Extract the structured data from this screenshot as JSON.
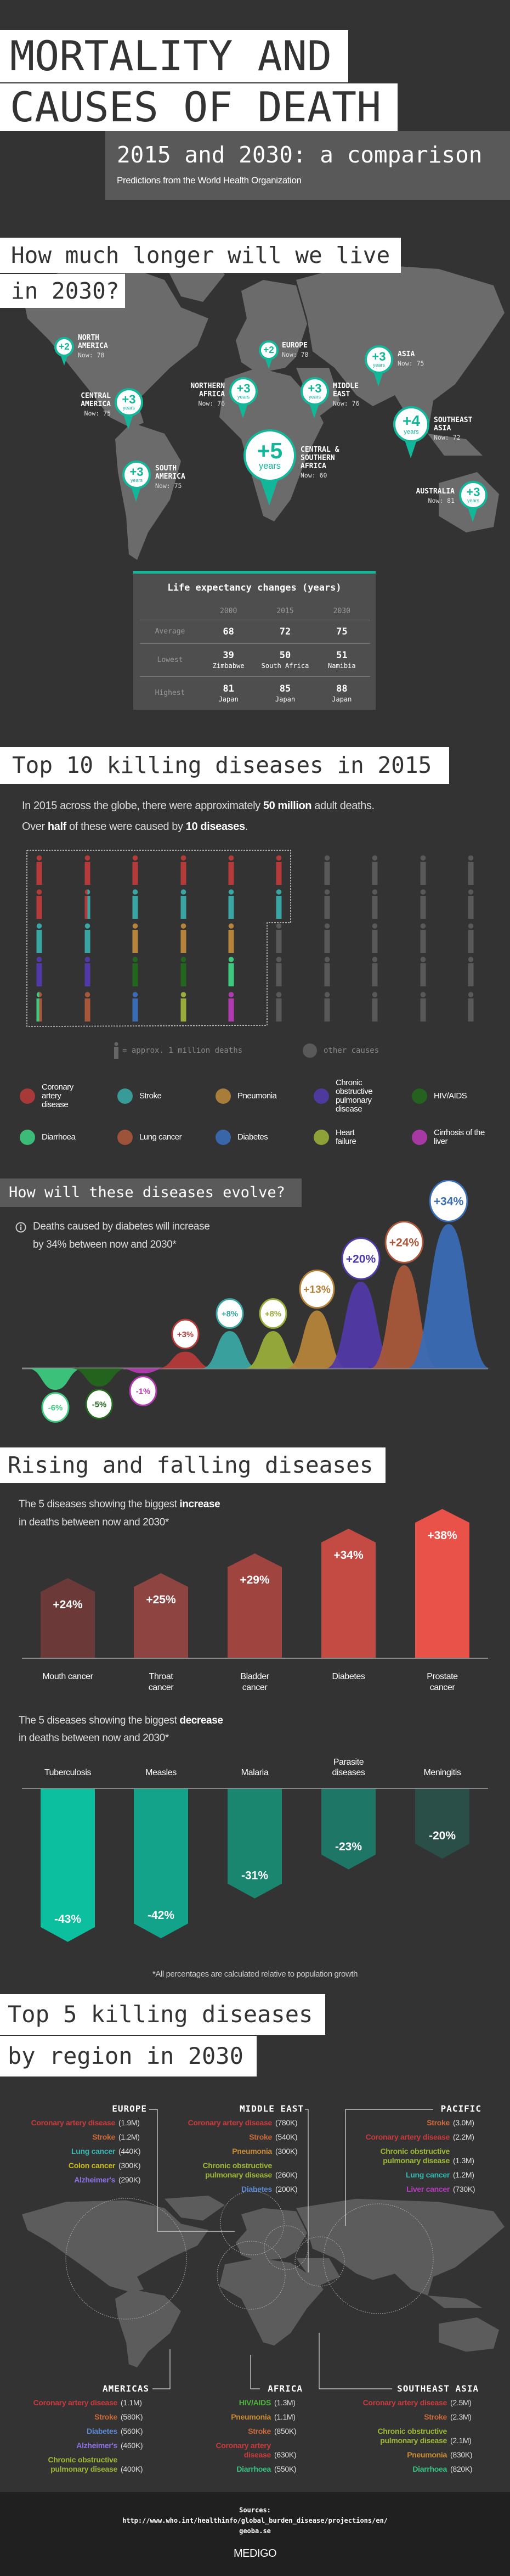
{
  "header": {
    "title_line1": "MORTALITY AND",
    "title_line2": "CAUSES OF DEATH",
    "subtitle": "2015 and 2030: a comparison",
    "tagline": "Predictions from the World Health Organization"
  },
  "colors": {
    "background": "#333333",
    "accent": "#12b79a",
    "land": "#6b6b6b",
    "coronary": "#b53a3a",
    "stroke": "#3aa6a3",
    "pneumonia": "#b5843a",
    "copd": "#513aa8",
    "hiv": "#23661d",
    "diarrhoea": "#3dc97e",
    "lung": "#a8573a",
    "diabetes": "#3a6cb5",
    "heart": "#98ad3a",
    "cirrhosis": "#b23ab0",
    "other": "#595959"
  },
  "life": {
    "heading_line1": "How much longer will we live",
    "heading_line2": "in 2030?",
    "pins": [
      {
        "region_lines": [
          "NORTH",
          "AMERICA"
        ],
        "change": "+2",
        "unit": "",
        "now": "Now: 78"
      },
      {
        "region_lines": [
          "EUROPE"
        ],
        "change": "+2",
        "unit": "",
        "now": "Now: 78"
      },
      {
        "region_lines": [
          "ASIA"
        ],
        "change": "+3",
        "unit": "years",
        "now": "Now: 75"
      },
      {
        "region_lines": [
          "NORTHERN",
          "AFRICA"
        ],
        "change": "+3",
        "unit": "years",
        "now": "Now: 76"
      },
      {
        "region_lines": [
          "MIDDLE",
          "EAST"
        ],
        "change": "+3",
        "unit": "years",
        "now": "Now: 76"
      },
      {
        "region_lines": [
          "CENTRAL",
          "AMERICA"
        ],
        "change": "+3",
        "unit": "years",
        "now": "Now: 75"
      },
      {
        "region_lines": [
          "SOUTHEAST",
          "ASIA"
        ],
        "change": "+4",
        "unit": "years",
        "now": "Now: 72"
      },
      {
        "region_lines": [
          "CENTRAL &",
          "SOUTHERN",
          "AFRICA"
        ],
        "change": "+5",
        "unit": "years",
        "now": "Now: 60"
      },
      {
        "region_lines": [
          "SOUTH",
          "AMERICA"
        ],
        "change": "+3",
        "unit": "years",
        "now": "Now: 75"
      },
      {
        "region_lines": [
          "AUSTRALIA"
        ],
        "change": "+3",
        "unit": "years",
        "now": "Now: 81"
      }
    ],
    "table": {
      "title": "Life expectancy changes (years)",
      "years": [
        "2000",
        "2015",
        "2030"
      ],
      "rows": [
        {
          "label": "Average",
          "cells": [
            {
              "value": "68",
              "country": ""
            },
            {
              "value": "72",
              "country": ""
            },
            {
              "value": "75",
              "country": ""
            }
          ]
        },
        {
          "label": "Lowest",
          "cells": [
            {
              "value": "39",
              "country": "Zimbabwe"
            },
            {
              "value": "50",
              "country": "South Africa"
            },
            {
              "value": "51",
              "country": "Namibia"
            }
          ]
        },
        {
          "label": "Highest",
          "cells": [
            {
              "value": "81",
              "country": "Japan"
            },
            {
              "value": "85",
              "country": "Japan"
            },
            {
              "value": "88",
              "country": "Japan"
            }
          ]
        }
      ]
    }
  },
  "top10": {
    "heading": "Top 10 killing diseases in 2015",
    "intro_line1": {
      "pre": "In 2015 across the globe, there were approximately ",
      "bold": "50 million",
      "post": " adult deaths."
    },
    "intro_line2": {
      "pre": "Over ",
      "bold1": "half",
      "mid": " of these were caused by ",
      "bold2": "10 diseases",
      "post": "."
    },
    "grid": [
      [
        "coronary",
        "coronary",
        "coronary",
        "coronary",
        "coronary",
        "coronary",
        "other",
        "other",
        "other",
        "other"
      ],
      [
        "coronary",
        "coronary|stroke",
        "stroke",
        "stroke",
        "stroke",
        "stroke",
        "other",
        "other",
        "other",
        "other"
      ],
      [
        "stroke",
        "stroke",
        "pneumonia",
        "pneumonia",
        "pneumonia",
        "other",
        "other",
        "other",
        "other",
        "other"
      ],
      [
        "copd",
        "copd",
        "hiv",
        "hiv",
        "diarrhoea",
        "other",
        "other",
        "other",
        "other",
        "other"
      ],
      [
        "diarrhoea|lung",
        "lung",
        "diabetes",
        "heart",
        "cirrhosis",
        "other",
        "other",
        "other",
        "other",
        "other"
      ]
    ],
    "key_figure": "= approx. 1 million deaths",
    "key_other": "other causes",
    "legend": [
      {
        "key": "coronary",
        "label": "Coronary artery disease"
      },
      {
        "key": "stroke",
        "label": "Stroke"
      },
      {
        "key": "pneumonia",
        "label": "Pneumonia"
      },
      {
        "key": "copd",
        "label": "Chronic obstructive pulmonary disease"
      },
      {
        "key": "hiv",
        "label": "HIV/AIDS"
      },
      {
        "key": "diarrhoea",
        "label": "Diarrhoea"
      },
      {
        "key": "lung",
        "label": "Lung cancer"
      },
      {
        "key": "diabetes",
        "label": "Diabetes"
      },
      {
        "key": "heart",
        "label": "Heart failure"
      },
      {
        "key": "cirrhosis",
        "label": "Cirrhosis of the liver"
      }
    ]
  },
  "evolve": {
    "heading": "How will these diseases evolve?",
    "info_icon": "info-icon",
    "note_line1": "Deaths caused by diabetes will increase",
    "note_line2": "by 34% between now and 2030*"
  },
  "rising": {
    "heading": "Rising and falling diseases",
    "inc_line1": {
      "pre": "The 5 diseases showing the biggest ",
      "bold": "increase"
    },
    "inc_line2": "in deaths between now and 2030*",
    "dec_line1": {
      "pre": "The 5 diseases showing the biggest ",
      "bold": "decrease"
    },
    "dec_line2": "in deaths between now and 2030*",
    "footnote": "*All percentages are calculated relative to population growth"
  },
  "chart_data": [
    {
      "type": "area",
      "title": "How will these diseases evolve?",
      "categories": [
        "Diarrhoea",
        "HIV/AIDS",
        "Cirrhosis of the liver",
        "Coronary artery disease",
        "Stroke",
        "Heart failure",
        "Pneumonia",
        "Chronic obstructive pulmonary disease",
        "Lung cancer",
        "Diabetes"
      ],
      "values": [
        -6,
        -5,
        -1,
        3,
        8,
        8,
        13,
        20,
        24,
        34
      ],
      "labels": [
        "-6%",
        "-5%",
        "-1%",
        "+3%",
        "+8%",
        "+8%",
        "+13%",
        "+20%",
        "+24%",
        "+34%"
      ],
      "color_keys": [
        "diarrhoea",
        "hiv",
        "cirrhosis",
        "coronary",
        "stroke",
        "heart",
        "pneumonia",
        "copd",
        "lung",
        "diabetes"
      ],
      "unit": "%"
    },
    {
      "type": "bar",
      "categories": [
        "Mouth cancer",
        "Throat cancer",
        "Bladder cancer",
        "Diabetes",
        "Prostate cancer"
      ],
      "values": [
        24,
        25,
        29,
        34,
        38
      ],
      "labels": [
        "+24%",
        "+25%",
        "+29%",
        "+34%",
        "+38%"
      ],
      "colors": [
        "#6b3a38",
        "#8e4440",
        "#a0443f",
        "#c44b44",
        "#e85248"
      ],
      "unit": "%"
    },
    {
      "type": "bar",
      "categories": [
        "Tuberculosis",
        "Measles",
        "Malaria",
        "Parasite diseases",
        "Meningitis"
      ],
      "values": [
        -43,
        -42,
        -31,
        -23,
        -20
      ],
      "labels": [
        "-43%",
        "-42%",
        "-31%",
        "-23%",
        "-20%"
      ],
      "colors": [
        "#0cbf9f",
        "#12a38a",
        "#1a8670",
        "#1e7766",
        "#2a4f48"
      ],
      "unit": "%"
    }
  ],
  "regions": {
    "heading_line1": "Top 5 killing diseases",
    "heading_line2": "by region in 2030",
    "disease_colors": {
      "Coronary artery disease": "#c93a3c",
      "Stroke": "#cc6a3a",
      "Lung cancer": "#35b8b2",
      "Colon cancer": "#cbbb1a",
      "Alzheimer's": "#8c70e3",
      "Pneumonia": "#c98c35",
      "Chronic obstructive pulmonary disease": "#9cb836",
      "Diabetes": "#5b8ad3",
      "HIV/AIDS": "#4db33c",
      "Diarrhoea": "#36c482",
      "Liver cancer": "#bb3ac3"
    },
    "list": [
      {
        "name": "EUROPE",
        "entries": [
          {
            "disease": "Coronary artery disease",
            "value": "(1.9M)"
          },
          {
            "disease": "Stroke",
            "value": "(1.2M)"
          },
          {
            "disease": "Lung cancer",
            "value": "(440K)"
          },
          {
            "disease": "Colon cancer",
            "value": "(300K)"
          },
          {
            "disease": "Alzheimer's",
            "value": "(290K)"
          }
        ]
      },
      {
        "name": "MIDDLE EAST",
        "entries": [
          {
            "disease": "Coronary artery disease",
            "value": "(780K)"
          },
          {
            "disease": "Stroke",
            "value": "(540K)"
          },
          {
            "disease": "Pneumonia",
            "value": "(300K)"
          },
          {
            "disease": "Chronic obstructive pulmonary disease",
            "value": "(260K)"
          },
          {
            "disease": "Diabetes",
            "value": "(200K)"
          }
        ]
      },
      {
        "name": "PACIFIC",
        "entries": [
          {
            "disease": "Stroke",
            "value": "(3.0M)"
          },
          {
            "disease": "Coronary artery disease",
            "value": "(2.2M)"
          },
          {
            "disease": "Chronic obstructive pulmonary disease",
            "value": "(1.3M)"
          },
          {
            "disease": "Lung cancer",
            "value": "(1.2M)"
          },
          {
            "disease": "Liver cancer",
            "value": "(730K)"
          }
        ]
      },
      {
        "name": "AMERICAS",
        "entries": [
          {
            "disease": "Coronary artery disease",
            "value": "(1.1M)"
          },
          {
            "disease": "Stroke",
            "value": "(580K)"
          },
          {
            "disease": "Diabetes",
            "value": "(560K)"
          },
          {
            "disease": "Alzheimer's",
            "value": "(460K)"
          },
          {
            "disease": "Chronic obstructive pulmonary disease",
            "value": "(400K)"
          }
        ]
      },
      {
        "name": "AFRICA",
        "entries": [
          {
            "disease": "HIV/AIDS",
            "value": "(1.3M)"
          },
          {
            "disease": "Pneumonia",
            "value": "(1.1M)"
          },
          {
            "disease": "Stroke",
            "value": "(850K)"
          },
          {
            "disease": "Coronary artery disease",
            "value": "(630K)"
          },
          {
            "disease": "Diarrhoea",
            "value": "(550K)"
          }
        ]
      },
      {
        "name": "SOUTHEAST ASIA",
        "entries": [
          {
            "disease": "Coronary artery disease",
            "value": "(2.5M)"
          },
          {
            "disease": "Stroke",
            "value": "(2.3M)"
          },
          {
            "disease": "Chronic obstructive pulmonary disease",
            "value": "(2.1M)"
          },
          {
            "disease": "Pneumonia",
            "value": "(830K)"
          },
          {
            "disease": "Diarrhoea",
            "value": "(820K)"
          }
        ]
      }
    ]
  },
  "footer": {
    "sources_label": "Sources:",
    "source1": "http://www.who.int/healthinfo/global_burden_disease/projections/en/",
    "source2": "geoba.se",
    "logo": "MEDIGO"
  }
}
